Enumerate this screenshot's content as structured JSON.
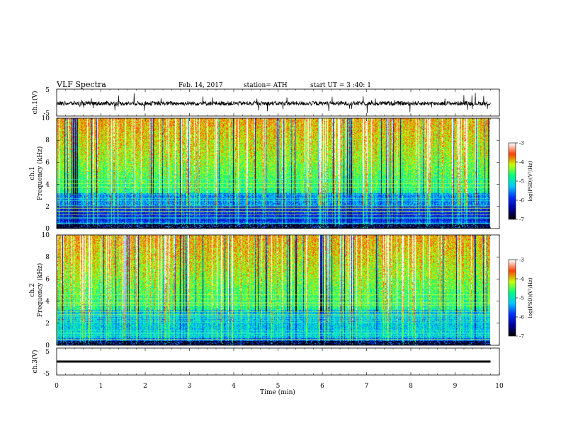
{
  "header": {
    "title": "VLF  Spectra",
    "date": "Feb. 14, 2017",
    "station": "station= ATH",
    "start_ut": "start  UT  =   3  :40: 1"
  },
  "chart_data": [
    {
      "type": "line",
      "name": "ch1-waveform",
      "ylabel": "ch.1(V)",
      "ylim": [
        -5,
        5
      ],
      "yticks": [
        "5",
        "-5"
      ],
      "xlim": [
        0,
        10
      ],
      "baseline": 0,
      "color": "#000000"
    },
    {
      "type": "heatmap",
      "name": "ch1-spectrogram",
      "ylabel_lines": [
        "ch.1",
        "Frequency  (kHz)"
      ],
      "ylim": [
        0,
        10
      ],
      "yticks": [
        "0",
        "2",
        "4",
        "6",
        "8",
        "10"
      ],
      "xlim": [
        0,
        9.8
      ],
      "colorbar": {
        "label": "log(PSD)(V²/Hz)",
        "ticks": [
          "-3",
          "-4",
          "-5",
          "-6",
          "-7"
        ],
        "range": [
          -7,
          -3
        ]
      }
    },
    {
      "type": "heatmap",
      "name": "ch2-spectrogram",
      "ylabel_lines": [
        "ch.2",
        "Frequency  (kHz)"
      ],
      "ylim": [
        0,
        10
      ],
      "yticks": [
        "0",
        "2",
        "4",
        "6",
        "8",
        "10"
      ],
      "xlim": [
        0,
        9.8
      ],
      "colorbar": {
        "label": "log(PSD)(V²/Hz)",
        "ticks": [
          "-3",
          "-4",
          "-5",
          "-6",
          "-7"
        ],
        "range": [
          -7,
          -3
        ]
      }
    },
    {
      "type": "line",
      "name": "ch3-waveform",
      "ylabel": "ch.3(V)",
      "ylim": [
        -5,
        5
      ],
      "yticks": [
        "5",
        "-5"
      ],
      "xlim": [
        0,
        9.8
      ],
      "baseline": 0,
      "color": "#000000"
    }
  ],
  "x_axis": {
    "label": "Time  (min)",
    "ticks": [
      "0",
      "1",
      "2",
      "3",
      "4",
      "5",
      "6",
      "7",
      "8",
      "9",
      "10"
    ],
    "range": [
      0,
      10
    ]
  },
  "colors": {
    "background": "#ffffff",
    "colormap": [
      "#000000",
      "#0000a0",
      "#0030ff",
      "#00c8ff",
      "#00ff80",
      "#c8ff00",
      "#ff4000",
      "#ffffff"
    ]
  }
}
